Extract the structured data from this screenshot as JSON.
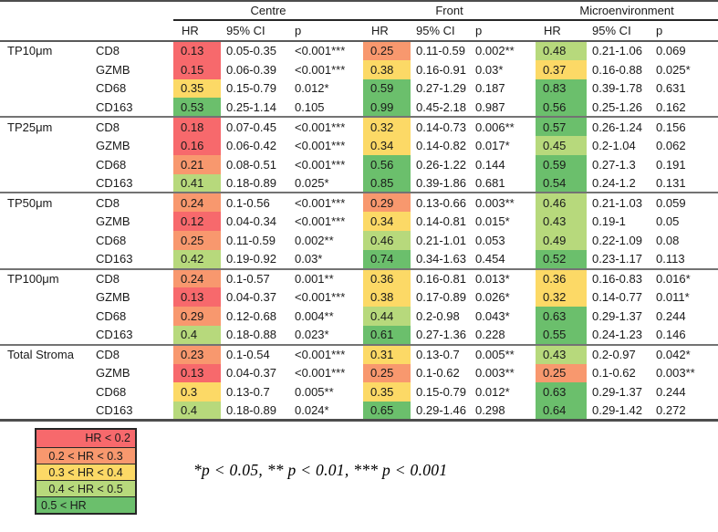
{
  "chart_data": {
    "type": "table",
    "title": "",
    "column_groups": [
      "Centre",
      "Front",
      "Microenvironment"
    ],
    "sub_headers": [
      "HR",
      "95% CI",
      "p"
    ],
    "sections": [
      {
        "label": "TP10μm",
        "rows": [
          {
            "marker": "CD8",
            "centre": {
              "hr": "0.13",
              "ci": "0.05-0.35",
              "p": "<0.001***"
            },
            "front": {
              "hr": "0.25",
              "ci": "0.11-0.59",
              "p": "0.002**"
            },
            "microenvironment": {
              "hr": "0.48",
              "ci": "0.21-1.06",
              "p": "0.069"
            }
          },
          {
            "marker": "GZMB",
            "centre": {
              "hr": "0.15",
              "ci": "0.06-0.39",
              "p": "<0.001***"
            },
            "front": {
              "hr": "0.38",
              "ci": "0.16-0.91",
              "p": "0.03*"
            },
            "microenvironment": {
              "hr": "0.37",
              "ci": "0.16-0.88",
              "p": "0.025*"
            }
          },
          {
            "marker": "CD68",
            "centre": {
              "hr": "0.35",
              "ci": "0.15-0.79",
              "p": "0.012*"
            },
            "front": {
              "hr": "0.59",
              "ci": "0.27-1.29",
              "p": "0.187"
            },
            "microenvironment": {
              "hr": "0.83",
              "ci": "0.39-1.78",
              "p": "0.631"
            }
          },
          {
            "marker": "CD163",
            "centre": {
              "hr": "0.53",
              "ci": "0.25-1.14",
              "p": "0.105"
            },
            "front": {
              "hr": "0.99",
              "ci": "0.45-2.18",
              "p": "0.987"
            },
            "microenvironment": {
              "hr": "0.56",
              "ci": "0.25-1.26",
              "p": "0.162"
            }
          }
        ]
      },
      {
        "label": "TP25μm",
        "rows": [
          {
            "marker": "CD8",
            "centre": {
              "hr": "0.18",
              "ci": "0.07-0.45",
              "p": "<0.001***"
            },
            "front": {
              "hr": "0.32",
              "ci": "0.14-0.73",
              "p": "0.006**"
            },
            "microenvironment": {
              "hr": "0.57",
              "ci": "0.26-1.24",
              "p": "0.156"
            }
          },
          {
            "marker": "GZMB",
            "centre": {
              "hr": "0.16",
              "ci": "0.06-0.42",
              "p": "<0.001***"
            },
            "front": {
              "hr": "0.34",
              "ci": "0.14-0.82",
              "p": "0.017*"
            },
            "microenvironment": {
              "hr": "0.45",
              "ci": "0.2-1.04",
              "p": "0.062"
            }
          },
          {
            "marker": "CD68",
            "centre": {
              "hr": "0.21",
              "ci": "0.08-0.51",
              "p": "<0.001***"
            },
            "front": {
              "hr": "0.56",
              "ci": "0.26-1.22",
              "p": "0.144"
            },
            "microenvironment": {
              "hr": "0.59",
              "ci": "0.27-1.3",
              "p": "0.191"
            }
          },
          {
            "marker": "CD163",
            "centre": {
              "hr": "0.41",
              "ci": "0.18-0.89",
              "p": "0.025*"
            },
            "front": {
              "hr": "0.85",
              "ci": "0.39-1.86",
              "p": "0.681"
            },
            "microenvironment": {
              "hr": "0.54",
              "ci": "0.24-1.2",
              "p": "0.131"
            }
          }
        ]
      },
      {
        "label": "TP50μm",
        "rows": [
          {
            "marker": "CD8",
            "centre": {
              "hr": "0.24",
              "ci": "0.1-0.56",
              "p": "<0.001***"
            },
            "front": {
              "hr": "0.29",
              "ci": "0.13-0.66",
              "p": "0.003**"
            },
            "microenvironment": {
              "hr": "0.46",
              "ci": "0.21-1.03",
              "p": "0.059"
            }
          },
          {
            "marker": "GZMB",
            "centre": {
              "hr": "0.12",
              "ci": "0.04-0.34",
              "p": "<0.001***"
            },
            "front": {
              "hr": "0.34",
              "ci": "0.14-0.81",
              "p": "0.015*"
            },
            "microenvironment": {
              "hr": "0.43",
              "ci": "0.19-1",
              "p": "0.05"
            }
          },
          {
            "marker": "CD68",
            "centre": {
              "hr": "0.25",
              "ci": "0.11-0.59",
              "p": "0.002**"
            },
            "front": {
              "hr": "0.46",
              "ci": "0.21-1.01",
              "p": "0.053"
            },
            "microenvironment": {
              "hr": "0.49",
              "ci": "0.22-1.09",
              "p": "0.08"
            }
          },
          {
            "marker": "CD163",
            "centre": {
              "hr": "0.42",
              "ci": "0.19-0.92",
              "p": "0.03*"
            },
            "front": {
              "hr": "0.74",
              "ci": "0.34-1.63",
              "p": "0.454"
            },
            "microenvironment": {
              "hr": "0.52",
              "ci": "0.23-1.17",
              "p": "0.113"
            }
          }
        ]
      },
      {
        "label": "TP100μm",
        "rows": [
          {
            "marker": "CD8",
            "centre": {
              "hr": "0.24",
              "ci": "0.1-0.57",
              "p": "0.001**"
            },
            "front": {
              "hr": "0.36",
              "ci": "0.16-0.81",
              "p": "0.013*"
            },
            "microenvironment": {
              "hr": "0.36",
              "ci": "0.16-0.83",
              "p": "0.016*"
            }
          },
          {
            "marker": "GZMB",
            "centre": {
              "hr": "0.13",
              "ci": "0.04-0.37",
              "p": "<0.001***"
            },
            "front": {
              "hr": "0.38",
              "ci": "0.17-0.89",
              "p": "0.026*"
            },
            "microenvironment": {
              "hr": "0.32",
              "ci": "0.14-0.77",
              "p": "0.011*"
            }
          },
          {
            "marker": "CD68",
            "centre": {
              "hr": "0.29",
              "ci": "0.12-0.68",
              "p": "0.004**"
            },
            "front": {
              "hr": "0.44",
              "ci": "0.2-0.98",
              "p": "0.043*"
            },
            "microenvironment": {
              "hr": "0.63",
              "ci": "0.29-1.37",
              "p": "0.244"
            }
          },
          {
            "marker": "CD163",
            "centre": {
              "hr": "0.4",
              "ci": "0.18-0.88",
              "p": "0.023*"
            },
            "front": {
              "hr": "0.61",
              "ci": "0.27-1.36",
              "p": "0.228"
            },
            "microenvironment": {
              "hr": "0.55",
              "ci": "0.24-1.23",
              "p": "0.146"
            }
          }
        ]
      },
      {
        "label": "Total Stroma",
        "rows": [
          {
            "marker": "CD8",
            "centre": {
              "hr": "0.23",
              "ci": "0.1-0.54",
              "p": "<0.001***"
            },
            "front": {
              "hr": "0.31",
              "ci": "0.13-0.7",
              "p": "0.005**"
            },
            "microenvironment": {
              "hr": "0.43",
              "ci": "0.2-0.97",
              "p": "0.042*"
            }
          },
          {
            "marker": "GZMB",
            "centre": {
              "hr": "0.13",
              "ci": "0.04-0.37",
              "p": "<0.001***"
            },
            "front": {
              "hr": "0.25",
              "ci": "0.1-0.62",
              "p": "0.003**"
            },
            "microenvironment": {
              "hr": "0.25",
              "ci": "0.1-0.62",
              "p": "0.003**"
            }
          },
          {
            "marker": "CD68",
            "centre": {
              "hr": "0.3",
              "ci": "0.13-0.7",
              "p": "0.005**"
            },
            "front": {
              "hr": "0.35",
              "ci": "0.15-0.79",
              "p": "0.012*"
            },
            "microenvironment": {
              "hr": "0.63",
              "ci": "0.29-1.37",
              "p": "0.244"
            }
          },
          {
            "marker": "CD163",
            "centre": {
              "hr": "0.4",
              "ci": "0.18-0.89",
              "p": "0.024*"
            },
            "front": {
              "hr": "0.65",
              "ci": "0.29-1.46",
              "p": "0.298"
            },
            "microenvironment": {
              "hr": "0.64",
              "ci": "0.29-1.42",
              "p": "0.272"
            }
          }
        ]
      }
    ],
    "legend": [
      {
        "label": "HR < 0.2",
        "color": "#f7696c"
      },
      {
        "label": "0.2 < HR < 0.3",
        "color": "#f8986e"
      },
      {
        "label": "0.3 < HR < 0.4",
        "color": "#fcd966"
      },
      {
        "label": "0.4 < HR < 0.5",
        "color": "#b7d97c"
      },
      {
        "label": "0.5 < HR",
        "color": "#6bbf6c"
      }
    ],
    "footnote": "*p < 0.05, ** p < 0.01, *** p < 0.001"
  }
}
